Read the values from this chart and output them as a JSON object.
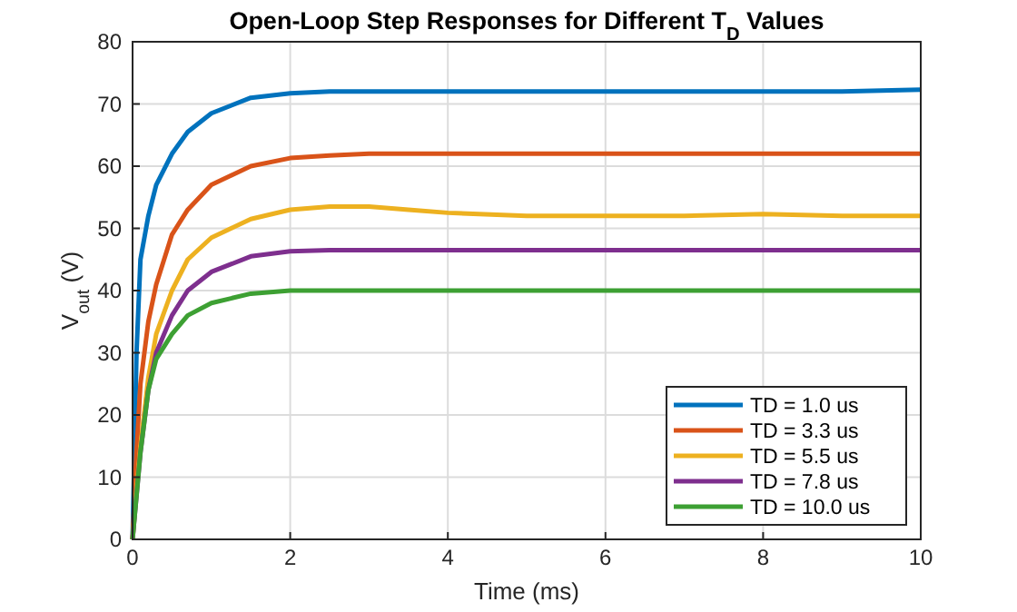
{
  "chart_data": {
    "type": "line",
    "title": "Open-Loop Step Responses for Different T$_{D}$ Values",
    "xlabel": "Time (ms)",
    "ylabel": "V$_{out}$ (V)",
    "x": [
      0,
      0.05,
      0.1,
      0.2,
      0.3,
      0.5,
      0.7,
      1,
      1.5,
      2,
      2.5,
      3,
      3.5,
      4,
      5,
      6,
      7,
      8,
      9,
      10
    ],
    "series": [
      {
        "name": "TD = 1.0 us",
        "color": "#0072bd",
        "values": [
          0,
          30,
          45,
          52,
          57,
          62,
          65.5,
          68.5,
          71,
          71.7,
          72,
          72,
          72,
          72,
          72,
          72,
          72,
          72,
          72,
          72.3
        ]
      },
      {
        "name": "TD = 3.3 us",
        "color": "#d95319",
        "values": [
          0,
          14,
          25,
          35,
          41,
          49,
          53,
          57,
          60,
          61.3,
          61.7,
          62,
          62,
          62,
          62,
          62,
          62,
          62,
          62,
          62
        ]
      },
      {
        "name": "TD = 5.5 us",
        "color": "#edb120",
        "values": [
          0,
          8,
          15,
          26,
          33,
          40,
          45,
          48.5,
          51.5,
          53,
          53.5,
          53.5,
          53,
          52.5,
          52,
          52,
          52,
          52.3,
          52,
          52
        ]
      },
      {
        "name": "TD = 7.8 us",
        "color": "#7e2f8e",
        "values": [
          0,
          7,
          14,
          24,
          30,
          36,
          40,
          43,
          45.5,
          46.3,
          46.5,
          46.5,
          46.5,
          46.5,
          46.5,
          46.5,
          46.5,
          46.5,
          46.5,
          46.5
        ]
      },
      {
        "name": "TD = 10.0 us",
        "color": "#3da033",
        "values": [
          0,
          7,
          14,
          24,
          29,
          33,
          36,
          38,
          39.5,
          40,
          40,
          40,
          40,
          40,
          40,
          40,
          40,
          40,
          40,
          40
        ]
      }
    ],
    "xlim": [
      0,
      10
    ],
    "xticks": [
      0,
      2,
      4,
      6,
      8,
      10
    ],
    "ylim": [
      0,
      80
    ],
    "yticks": [
      0,
      10,
      20,
      30,
      40,
      50,
      60,
      70,
      80
    ],
    "grid": true,
    "legend": "bottom right"
  }
}
